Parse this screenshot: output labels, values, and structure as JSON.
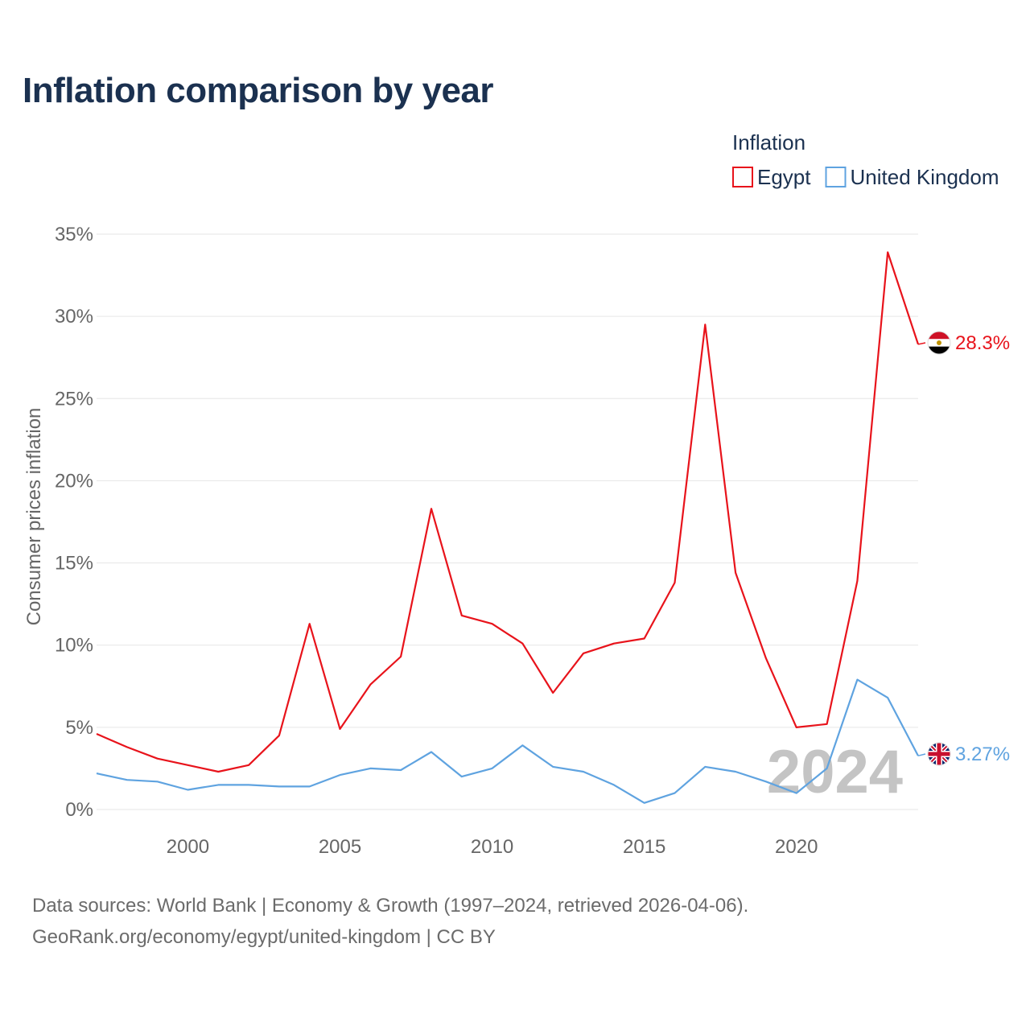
{
  "title": "Inflation comparison by year",
  "legend": {
    "title": "Inflation"
  },
  "watermark_year": "2024",
  "footer": {
    "sources": "Data sources: World Bank | Economy & Growth (1997–2024, retrieved 2026-04-06).",
    "credit": "GeoRank.org/economy/egypt/united-kingdom | CC BY"
  },
  "chart_data": {
    "type": "line",
    "title": "Inflation comparison by year",
    "xlabel": "",
    "ylabel": "Consumer prices inflation",
    "xlim": [
      1997,
      2024
    ],
    "ylim": [
      0,
      35
    ],
    "y_ticks": [
      0,
      5,
      10,
      15,
      20,
      25,
      30,
      35
    ],
    "y_tick_labels": [
      "0%",
      "5%",
      "10%",
      "15%",
      "20%",
      "25%",
      "30%",
      "35%"
    ],
    "x_ticks": [
      2000,
      2005,
      2010,
      2015,
      2020
    ],
    "x_tick_labels": [
      "2000",
      "2005",
      "2010",
      "2015",
      "2020"
    ],
    "grid": true,
    "legend_position": "top-right",
    "x": [
      1997,
      1998,
      1999,
      2000,
      2001,
      2002,
      2003,
      2004,
      2005,
      2006,
      2007,
      2008,
      2009,
      2010,
      2011,
      2012,
      2013,
      2014,
      2015,
      2016,
      2017,
      2018,
      2019,
      2020,
      2021,
      2022,
      2023,
      2024
    ],
    "series": [
      {
        "name": "Egypt",
        "color": "#e8131b",
        "flag": "egypt-flag",
        "end_label": "28.3%",
        "values": [
          4.6,
          3.8,
          3.1,
          2.7,
          2.3,
          2.7,
          4.5,
          11.3,
          4.9,
          7.6,
          9.3,
          18.3,
          11.8,
          11.3,
          10.1,
          7.1,
          9.5,
          10.1,
          10.4,
          13.8,
          29.5,
          14.4,
          9.2,
          5.0,
          5.2,
          13.9,
          33.9,
          28.3
        ]
      },
      {
        "name": "United Kingdom",
        "color": "#5fa3e0",
        "flag": "uk-flag",
        "end_label": "3.27%",
        "values": [
          2.2,
          1.8,
          1.7,
          1.2,
          1.5,
          1.5,
          1.4,
          1.4,
          2.1,
          2.5,
          2.4,
          3.5,
          2.0,
          2.5,
          3.9,
          2.6,
          2.3,
          1.5,
          0.4,
          1.0,
          2.6,
          2.3,
          1.7,
          1.0,
          2.5,
          7.9,
          6.8,
          3.27
        ]
      }
    ]
  }
}
